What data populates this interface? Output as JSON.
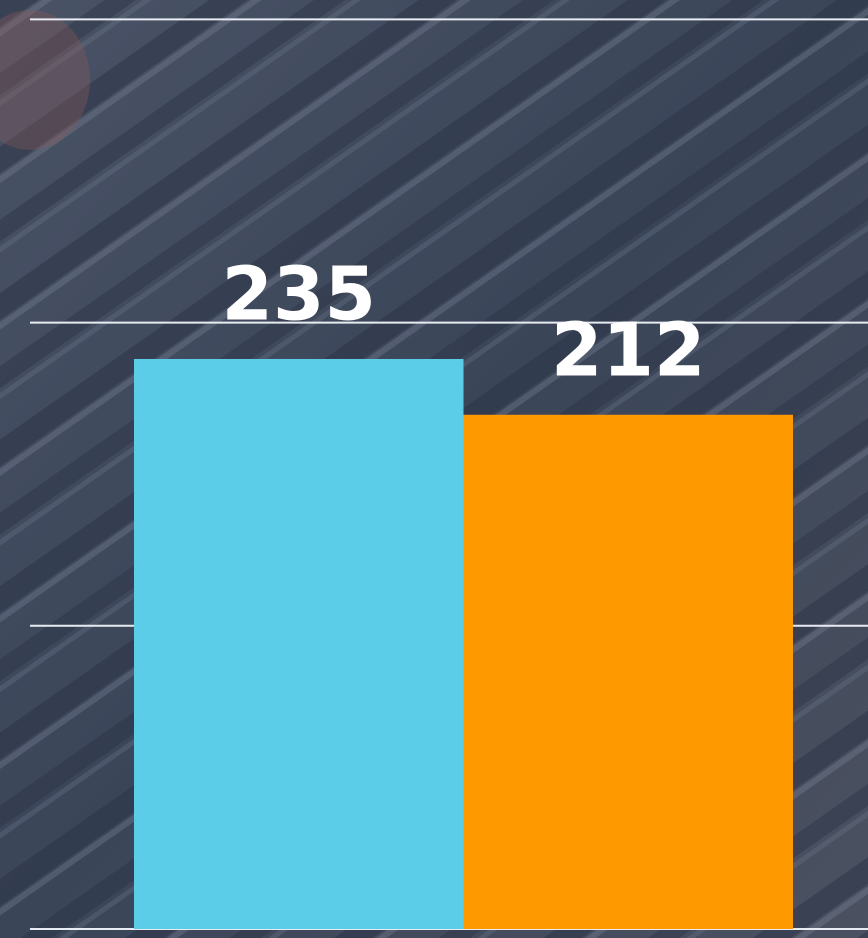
{
  "chart_data": {
    "type": "bar",
    "categories": [
      null,
      null
    ],
    "values": [
      235,
      212
    ],
    "colors": [
      "#5bcde8",
      "#ff9900"
    ],
    "ylim": [
      0,
      383
    ],
    "yticks": [
      0,
      125,
      250,
      375
    ],
    "grid": true
  }
}
